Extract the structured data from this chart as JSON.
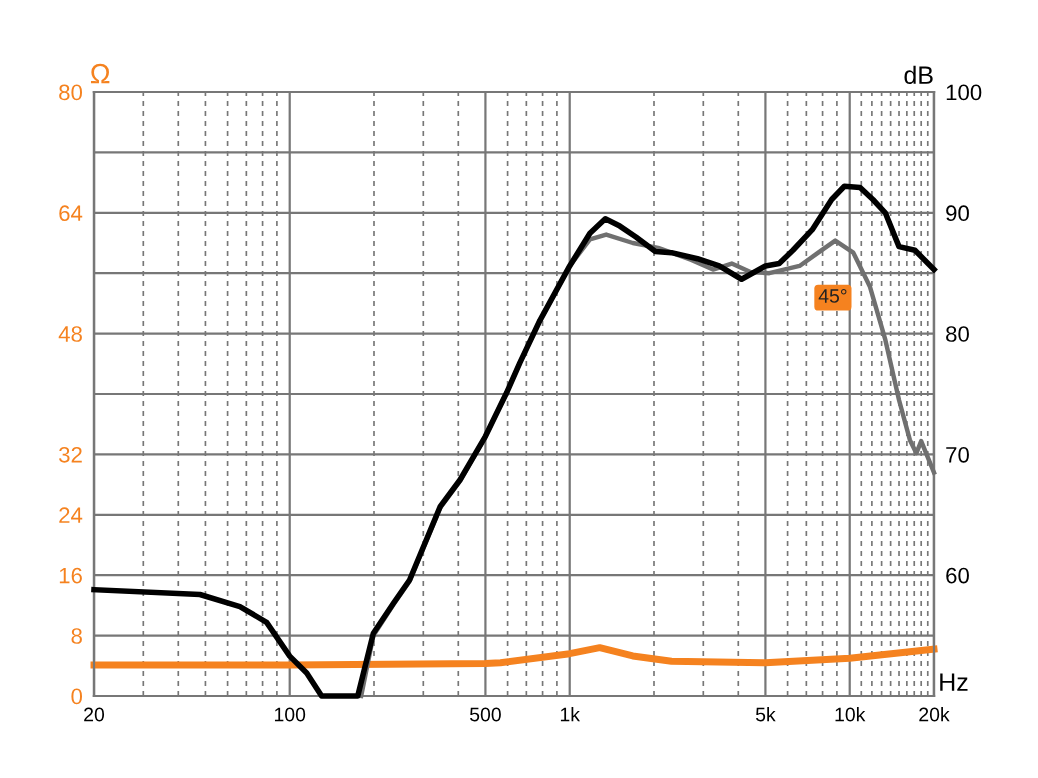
{
  "chart_data": {
    "type": "line",
    "ylabel": "Ω",
    "y2label": "dB",
    "xlabel": "Hz",
    "log": "x",
    "grid": true,
    "legend": false,
    "marker": "none",
    "line_style": "solid",
    "xlim": [
      20,
      20000
    ],
    "xticks": [
      20,
      {
        "value": 30,
        "label": null
      },
      {
        "value": 40,
        "label": null
      },
      {
        "value": 50,
        "label": null
      },
      {
        "value": 60,
        "label": null
      },
      {
        "value": 70,
        "label": null
      },
      {
        "value": 80,
        "label": null
      },
      {
        "value": 90,
        "label": null
      },
      100,
      {
        "value": 200,
        "label": null
      },
      {
        "value": 300,
        "label": null
      },
      {
        "value": 400,
        "label": null
      },
      500,
      {
        "value": 600,
        "label": null
      },
      {
        "value": 700,
        "label": null
      },
      {
        "value": 800,
        "label": null
      },
      {
        "value": 900,
        "label": null
      },
      {
        "value": 1000,
        "label": "1k"
      },
      {
        "value": 2000,
        "label": null
      },
      {
        "value": 3000,
        "label": null
      },
      {
        "value": 4000,
        "label": null
      },
      {
        "value": 5000,
        "label": "5k"
      },
      {
        "value": 6000,
        "label": null
      },
      {
        "value": 7000,
        "label": null
      },
      {
        "value": 8000,
        "label": null
      },
      {
        "value": 9000,
        "label": null
      },
      {
        "value": 10000,
        "label": "10k"
      },
      {
        "value": 11000,
        "label": null
      },
      {
        "value": 12000,
        "label": null
      },
      {
        "value": 13000,
        "label": null
      },
      {
        "value": 14000,
        "label": null
      },
      {
        "value": 15000,
        "label": null
      },
      {
        "value": 16000,
        "label": null
      },
      {
        "value": 17000,
        "label": null
      },
      {
        "value": 18000,
        "label": null
      },
      {
        "value": 19000,
        "label": null
      },
      {
        "value": 20000,
        "label": "20k"
      }
    ],
    "ylim": [
      0,
      80
    ],
    "yticks": [
      0,
      8,
      16,
      24,
      32,
      {
        "value": 40,
        "label": null
      },
      48,
      {
        "value": 56,
        "label": null
      },
      64,
      {
        "value": 72,
        "label": null
      },
      80
    ],
    "y2lim": [
      50,
      100
    ],
    "y2ticks": [
      60,
      70,
      80,
      90,
      100
    ],
    "series": [
      {
        "color": "#f5821f",
        "x": [
          20,
          100,
          500,
          566,
          1000,
          1280,
          1680,
          2310,
          5000,
          10000,
          20000
        ],
        "values": [
          4.1,
          4.1,
          4.3,
          4.4,
          5.6,
          6.4,
          5.3,
          4.6,
          4.4,
          5.0,
          6.2
        ]
      },
      {
        "name": "45°",
        "color": "#707070",
        "axis": "y2",
        "x": [
          180,
          199,
          235,
          268,
          345,
          406,
          500,
          595,
          664,
          783,
          1000,
          1181,
          1350,
          1680,
          2070,
          2720,
          3250,
          3790,
          4420,
          5160,
          6620,
          7720,
          8880,
          10300,
          11800,
          13400,
          15000,
          16400,
          17300,
          18000,
          20000
        ],
        "values": [
          50,
          55.0,
          57.6,
          59.5,
          65.6,
          67.8,
          71.5,
          75.1,
          77.6,
          81.1,
          85.6,
          87.8,
          88.2,
          87.5,
          87.1,
          86.1,
          85.3,
          85.8,
          85.1,
          85.0,
          85.6,
          86.7,
          87.7,
          86.7,
          83.9,
          79.5,
          74.5,
          71.2,
          70.1,
          71.1,
          68.5
        ]
      },
      {
        "color": "#000000",
        "axis": "y2",
        "x": [
          20,
          47.8,
          66.4,
          82.7,
          100,
          115,
          130,
          175,
          199,
          235,
          268,
          345,
          406,
          500,
          595,
          664,
          783,
          1000,
          1181,
          1340,
          1510,
          1724,
          2023,
          2310,
          2860,
          3420,
          4110,
          5000,
          5600,
          6270,
          7350,
          8620,
          9570,
          10890,
          12100,
          13400,
          15000,
          17100,
          20000
        ],
        "values": [
          58.8,
          58.4,
          57.4,
          56.1,
          53.3,
          51.9,
          50,
          50,
          55.2,
          57.7,
          59.6,
          65.7,
          67.9,
          71.5,
          75.1,
          77.6,
          81.1,
          85.6,
          88.3,
          89.5,
          88.9,
          88.0,
          86.8,
          86.7,
          86.2,
          85.6,
          84.5,
          85.6,
          85.8,
          86.9,
          88.6,
          91.1,
          92.2,
          92.1,
          91.1,
          90.0,
          87.2,
          86.9,
          85.3
        ]
      }
    ]
  }
}
